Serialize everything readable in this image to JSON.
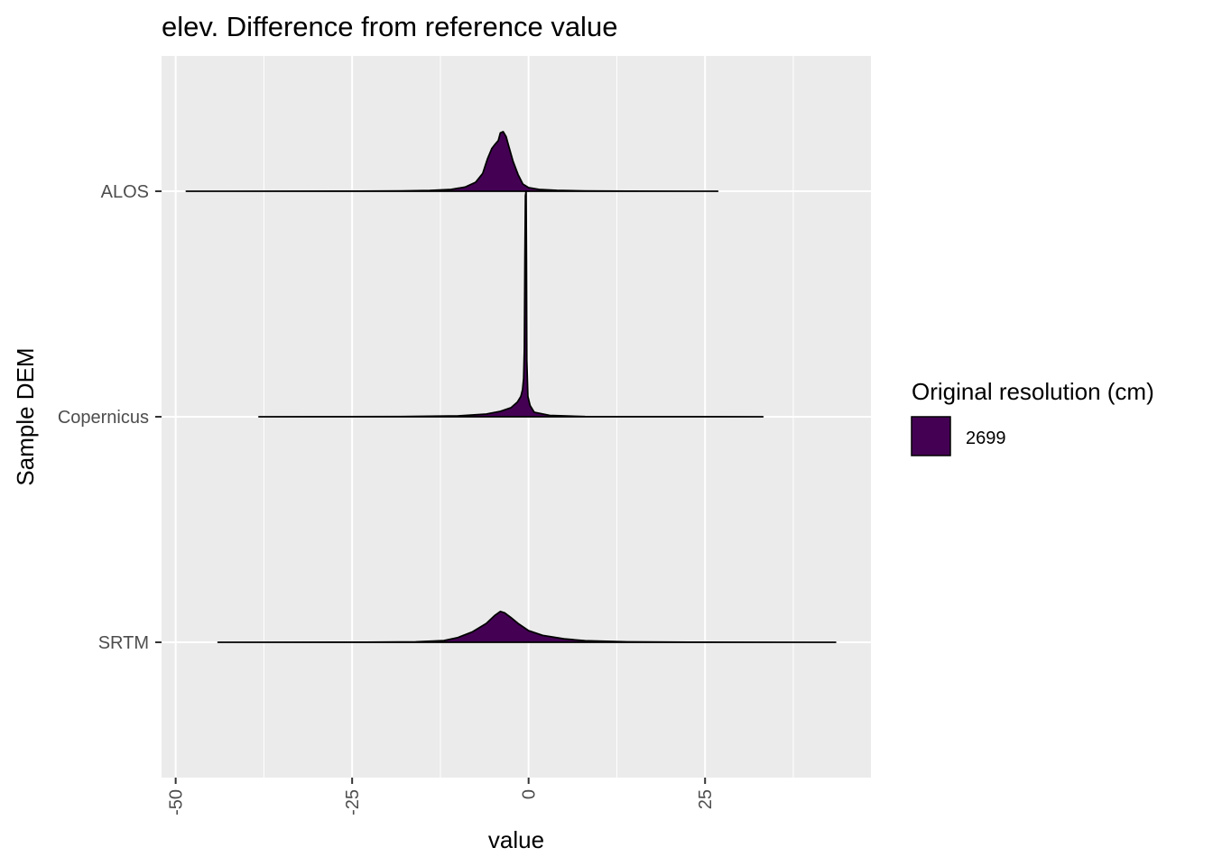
{
  "chart_data": {
    "type": "area",
    "subtype": "ridgeline-density",
    "title": "elev. Difference from reference value",
    "xlabel": "value",
    "ylabel": "Sample DEM",
    "xlim": [
      -52,
      48.5
    ],
    "x_ticks": [
      -50,
      -25,
      0,
      25
    ],
    "x_tick_labels": [
      "-50",
      "-25",
      "0",
      "25"
    ],
    "categories": [
      "ALOS",
      "Copernicus",
      "SRTM"
    ],
    "grid": true,
    "panel_color": "#ebebeb",
    "fill_color": "#440154",
    "legend": {
      "title": "Original resolution (cm)",
      "entries": [
        {
          "label": "2699",
          "color": "#440154"
        }
      ],
      "position": "right"
    },
    "series": [
      {
        "category": "ALOS",
        "range": [
          -48.5,
          26.8
        ],
        "density": [
          [
            -48.5,
            0
          ],
          [
            -24,
            0.001
          ],
          [
            -18,
            0.004
          ],
          [
            -14,
            0.012
          ],
          [
            -11,
            0.03
          ],
          [
            -9,
            0.07
          ],
          [
            -7.5,
            0.15
          ],
          [
            -6.5,
            0.3
          ],
          [
            -5.8,
            0.55
          ],
          [
            -5.2,
            0.72
          ],
          [
            -4.8,
            0.78
          ],
          [
            -4.3,
            0.85
          ],
          [
            -4.0,
            0.98
          ],
          [
            -3.6,
            1.0
          ],
          [
            -3.2,
            0.92
          ],
          [
            -2.8,
            0.75
          ],
          [
            -2.2,
            0.5
          ],
          [
            -1.5,
            0.28
          ],
          [
            -0.8,
            0.12
          ],
          [
            0,
            0.06
          ],
          [
            1.5,
            0.03
          ],
          [
            4,
            0.015
          ],
          [
            8,
            0.005
          ],
          [
            14,
            0.001
          ],
          [
            26.8,
            0
          ]
        ]
      },
      {
        "category": "Copernicus",
        "range": [
          -38.2,
          33.2
        ],
        "density": [
          [
            -38.2,
            0
          ],
          [
            -18,
            0.001
          ],
          [
            -10,
            0.004
          ],
          [
            -6,
            0.012
          ],
          [
            -4,
            0.024
          ],
          [
            -2.5,
            0.04
          ],
          [
            -1.6,
            0.065
          ],
          [
            -1.1,
            0.09
          ],
          [
            -0.85,
            0.12
          ],
          [
            -0.7,
            0.17
          ],
          [
            -0.6,
            0.3
          ],
          [
            -0.52,
            0.7
          ],
          [
            -0.45,
            0.98
          ],
          [
            -0.36,
            1.0
          ],
          [
            -0.3,
            0.7
          ],
          [
            -0.25,
            0.25
          ],
          [
            -0.1,
            0.09
          ],
          [
            0.2,
            0.05
          ],
          [
            0.8,
            0.02
          ],
          [
            3,
            0.006
          ],
          [
            8,
            0.001
          ],
          [
            33.2,
            0
          ]
        ]
      },
      {
        "category": "SRTM",
        "range": [
          -44,
          43.5
        ],
        "density": [
          [
            -44,
            0
          ],
          [
            -23,
            0.003
          ],
          [
            -16,
            0.012
          ],
          [
            -12,
            0.05
          ],
          [
            -10,
            0.14
          ],
          [
            -8,
            0.3
          ],
          [
            -6,
            0.55
          ],
          [
            -4.8,
            0.78
          ],
          [
            -4,
            0.9
          ],
          [
            -3.4,
            0.86
          ],
          [
            -2.5,
            0.72
          ],
          [
            -1.5,
            0.55
          ],
          [
            0,
            0.34
          ],
          [
            2,
            0.2
          ],
          [
            5,
            0.1
          ],
          [
            8,
            0.045
          ],
          [
            14,
            0.012
          ],
          [
            24,
            0.002
          ],
          [
            43.5,
            0
          ]
        ]
      }
    ]
  }
}
